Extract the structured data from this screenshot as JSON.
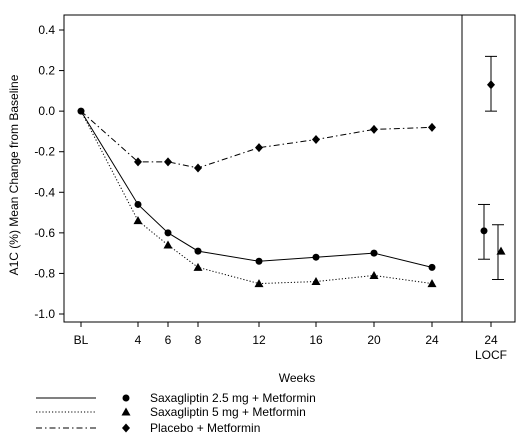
{
  "chart_data": {
    "type": "line",
    "ylabel": "A1C (%) Mean Change from Baseline",
    "xlabel": "Weeks",
    "ylim": [
      -1.0,
      0.4
    ],
    "yticks": [
      "0.4",
      "0.2",
      "0.0",
      "-0.2",
      "-0.4",
      "-0.6",
      "-0.8",
      "-1.0"
    ],
    "ytick_values": [
      0.4,
      0.2,
      0.0,
      -0.2,
      -0.4,
      -0.6,
      -0.8,
      -1.0
    ],
    "x": [
      0,
      4,
      6,
      8,
      12,
      16,
      20,
      24
    ],
    "xtick_labels": [
      "BL",
      "4",
      "6",
      "8",
      "12",
      "16",
      "20",
      "24"
    ],
    "grid": false,
    "legend_position": "bottom-left",
    "series": [
      {
        "name": "Saxagliptin 2.5 mg + Metformin",
        "marker": "circle",
        "linestyle": "solid",
        "values": [
          0.0,
          -0.46,
          -0.6,
          -0.69,
          -0.74,
          -0.72,
          -0.7,
          -0.77
        ]
      },
      {
        "name": "Saxagliptin 5 mg + Metformin",
        "marker": "triangle",
        "linestyle": "dotted",
        "values": [
          0.0,
          -0.54,
          -0.66,
          -0.77,
          -0.85,
          -0.84,
          -0.81,
          -0.85
        ]
      },
      {
        "name": "Placebo + Metformin",
        "marker": "diamond",
        "linestyle": "dashdot",
        "values": [
          0.0,
          -0.25,
          -0.25,
          -0.28,
          -0.18,
          -0.14,
          -0.09,
          -0.08
        ]
      }
    ],
    "locf_panel": {
      "tick_label": "24",
      "sub_label": "LOCF",
      "points": [
        {
          "series": "Saxagliptin 2.5 mg + Metformin",
          "marker": "circle",
          "value": -0.59,
          "ci": [
            -0.73,
            -0.46
          ]
        },
        {
          "series": "Saxagliptin 5 mg + Metformin",
          "marker": "triangle",
          "value": -0.69,
          "ci": [
            -0.83,
            -0.56
          ]
        },
        {
          "series": "Placebo + Metformin",
          "marker": "diamond",
          "value": 0.13,
          "ci": [
            0.0,
            0.27
          ]
        }
      ]
    }
  }
}
